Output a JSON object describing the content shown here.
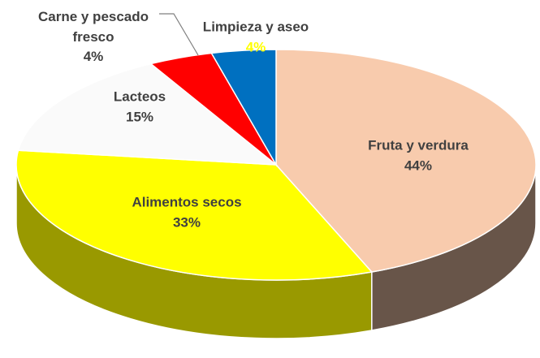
{
  "chart_data": {
    "type": "pie3d",
    "categories": [
      "Fruta y verdura",
      "Alimentos secos",
      "Lacteos",
      "Carne y pescado fresco",
      "Limpieza y aseo"
    ],
    "values": [
      44,
      33,
      15,
      4,
      4
    ],
    "value_labels": [
      "44%",
      "33%",
      "15%",
      "4%",
      "4%"
    ],
    "colors": [
      "#f8cbad",
      "#ffff00",
      "#fafafa",
      "#ff0000",
      "#0070c0"
    ]
  }
}
